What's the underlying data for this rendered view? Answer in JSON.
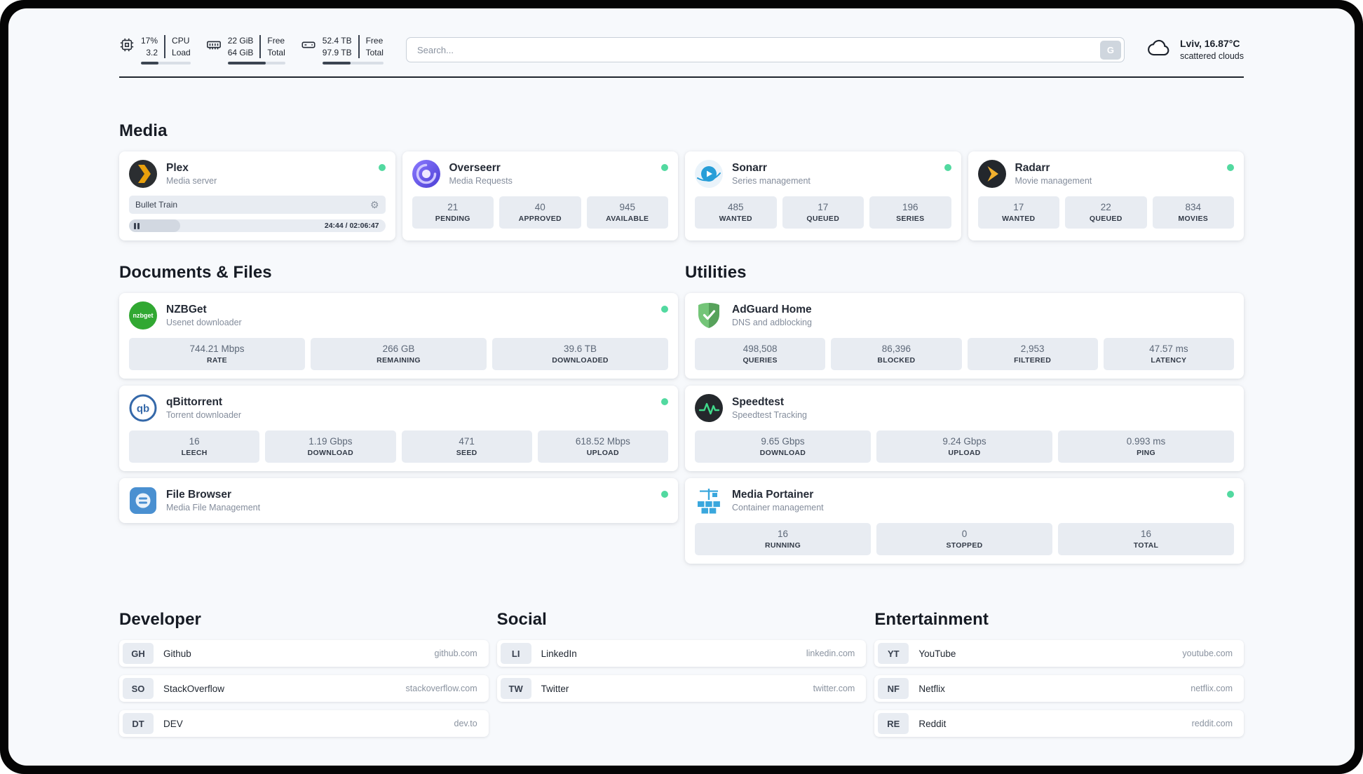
{
  "theme": {
    "online_dot": "#52d9a0",
    "background": "#f7f9fc",
    "card": "#ffffff",
    "stat_box": "#e8ecf2",
    "divider": "#20262e",
    "plex_accent": "#e8a00c",
    "adguard_green": "#74c578",
    "speedtest_green": "#40d98a",
    "portainer_blue": "#3aa7dd"
  },
  "header": {
    "metrics": [
      {
        "id": "cpu",
        "values": [
          "17%",
          "3.2"
        ],
        "labels": [
          "CPU",
          "Load"
        ],
        "progress": 35
      },
      {
        "id": "memory",
        "values": [
          "22 GiB",
          "64 GiB"
        ],
        "labels": [
          "Free",
          "Total"
        ],
        "progress": 66
      },
      {
        "id": "disk",
        "values": [
          "52.4 TB",
          "97.9 TB"
        ],
        "labels": [
          "Free",
          "Total"
        ],
        "progress": 46
      }
    ],
    "search": {
      "placeholder": "Search...",
      "engine_button": "G"
    },
    "weather": {
      "location": "Lviv, 16.87°C",
      "condition": "scattered clouds"
    }
  },
  "sections": {
    "media": {
      "title": "Media",
      "apps": {
        "plex": {
          "name": "Plex",
          "subtitle": "Media server",
          "online": true,
          "now_playing": {
            "title": "Bullet Train",
            "time_display": "24:44 / 02:06:47",
            "progress_percent": 20
          }
        },
        "overseerr": {
          "name": "Overseerr",
          "subtitle": "Media Requests",
          "online": true,
          "stats": [
            {
              "value": "21",
              "label": "PENDING"
            },
            {
              "value": "40",
              "label": "APPROVED"
            },
            {
              "value": "945",
              "label": "AVAILABLE"
            }
          ]
        },
        "sonarr": {
          "name": "Sonarr",
          "subtitle": "Series management",
          "online": true,
          "stats": [
            {
              "value": "485",
              "label": "WANTED"
            },
            {
              "value": "17",
              "label": "QUEUED"
            },
            {
              "value": "196",
              "label": "SERIES"
            }
          ]
        },
        "radarr": {
          "name": "Radarr",
          "subtitle": "Movie management",
          "online": true,
          "stats": [
            {
              "value": "17",
              "label": "WANTED"
            },
            {
              "value": "22",
              "label": "QUEUED"
            },
            {
              "value": "834",
              "label": "MOVIES"
            }
          ]
        }
      }
    },
    "documents": {
      "title": "Documents & Files",
      "apps": {
        "nzbget": {
          "name": "NZBGet",
          "subtitle": "Usenet downloader",
          "online": true,
          "stats": [
            {
              "value": "744.21 Mbps",
              "label": "RATE"
            },
            {
              "value": "266 GB",
              "label": "REMAINING"
            },
            {
              "value": "39.6 TB",
              "label": "DOWNLOADED"
            }
          ]
        },
        "qbittorrent": {
          "name": "qBittorrent",
          "subtitle": "Torrent downloader",
          "online": true,
          "stats": [
            {
              "value": "16",
              "label": "LEECH"
            },
            {
              "value": "1.19 Gbps",
              "label": "DOWNLOAD"
            },
            {
              "value": "471",
              "label": "SEED"
            },
            {
              "value": "618.52 Mbps",
              "label": "UPLOAD"
            }
          ]
        },
        "filebrowser": {
          "name": "File Browser",
          "subtitle": "Media File Management",
          "online": true
        }
      }
    },
    "utilities": {
      "title": "Utilities",
      "apps": {
        "adguard": {
          "name": "AdGuard Home",
          "subtitle": "DNS and adblocking",
          "stats": [
            {
              "value": "498,508",
              "label": "QUERIES"
            },
            {
              "value": "86,396",
              "label": "BLOCKED"
            },
            {
              "value": "2,953",
              "label": "FILTERED"
            },
            {
              "value": "47.57 ms",
              "label": "LATENCY"
            }
          ]
        },
        "speedtest": {
          "name": "Speedtest",
          "subtitle": "Speedtest Tracking",
          "stats": [
            {
              "value": "9.65 Gbps",
              "label": "DOWNLOAD"
            },
            {
              "value": "9.24 Gbps",
              "label": "UPLOAD"
            },
            {
              "value": "0.993 ms",
              "label": "PING"
            }
          ]
        },
        "portainer": {
          "name": "Media Portainer",
          "subtitle": "Container management",
          "online": true,
          "stats": [
            {
              "value": "16",
              "label": "RUNNING"
            },
            {
              "value": "0",
              "label": "STOPPED"
            },
            {
              "value": "16",
              "label": "TOTAL"
            }
          ]
        }
      }
    },
    "developer": {
      "title": "Developer",
      "bookmarks": [
        {
          "abbr": "GH",
          "name": "Github",
          "url": "github.com"
        },
        {
          "abbr": "SO",
          "name": "StackOverflow",
          "url": "stackoverflow.com"
        },
        {
          "abbr": "DT",
          "name": "DEV",
          "url": "dev.to"
        }
      ]
    },
    "social": {
      "title": "Social",
      "bookmarks": [
        {
          "abbr": "LI",
          "name": "LinkedIn",
          "url": "linkedin.com"
        },
        {
          "abbr": "TW",
          "name": "Twitter",
          "url": "twitter.com"
        }
      ]
    },
    "entertainment": {
      "title": "Entertainment",
      "bookmarks": [
        {
          "abbr": "YT",
          "name": "YouTube",
          "url": "youtube.com"
        },
        {
          "abbr": "NF",
          "name": "Netflix",
          "url": "netflix.com"
        },
        {
          "abbr": "RE",
          "name": "Reddit",
          "url": "reddit.com"
        }
      ]
    }
  }
}
